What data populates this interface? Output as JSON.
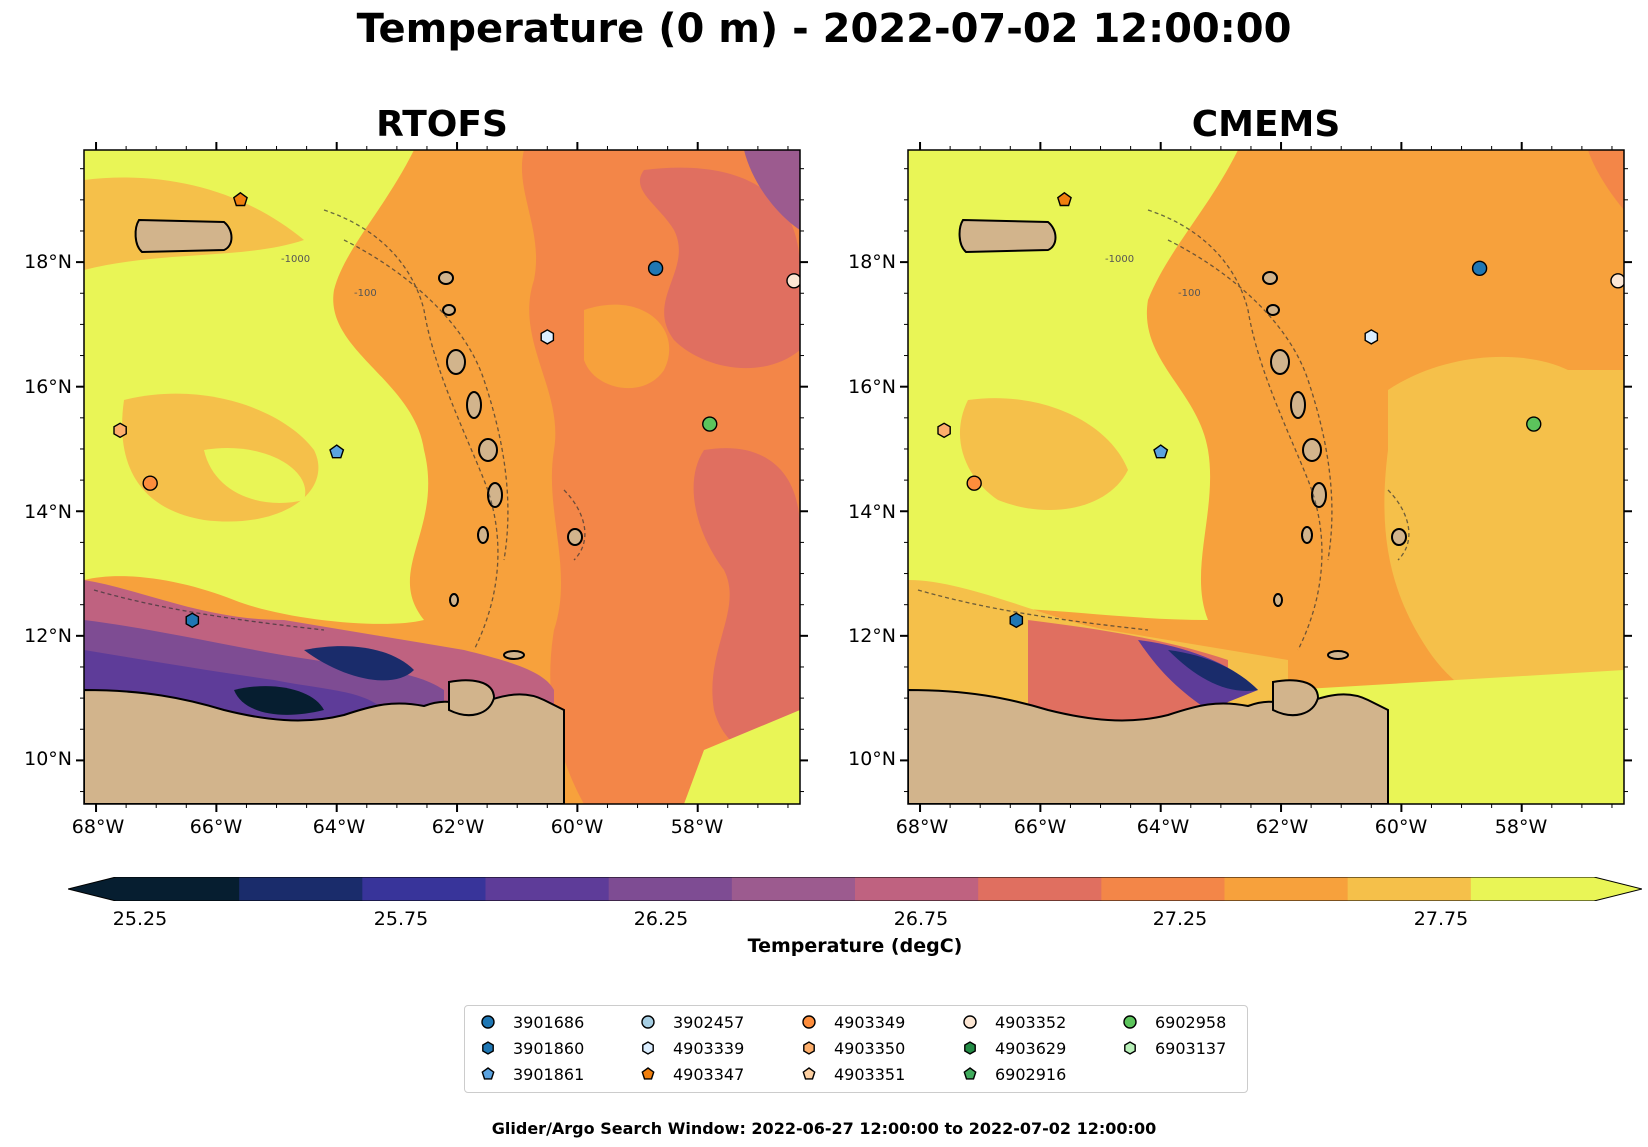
{
  "title": "Temperature (0 m) - 2022-07-02 12:00:00",
  "panels": [
    {
      "title": "RTOFS"
    },
    {
      "title": "CMEMS"
    }
  ],
  "lat_ticks": [
    "18°N",
    "16°N",
    "14°N",
    "12°N",
    "10°N"
  ],
  "lon_ticks": [
    "68°W",
    "66°W",
    "64°W",
    "62°W",
    "60°W",
    "58°W"
  ],
  "bathymetry_labels": [
    "-1000",
    "-100"
  ],
  "colorbar": {
    "label": "Temperature (degC)",
    "tick_labels": [
      "25.25",
      "25.75",
      "26.25",
      "26.75",
      "27.25",
      "27.75"
    ],
    "colors": [
      "#061e30",
      "#1a2c6b",
      "#38349a",
      "#5e3c99",
      "#7e4c93",
      "#9c5b8f",
      "#bf6280",
      "#e06f60",
      "#f38648",
      "#f7a13c",
      "#f5c04a",
      "#e9f556"
    ],
    "min_color": "#061e30",
    "max_color": "#e9f556"
  },
  "colors": {
    "land": "#d2b48c",
    "water_lakes": "#a6c3df"
  },
  "legend": {
    "items": [
      {
        "id": "3901686",
        "marker": "circle",
        "color": "#1f77b4"
      },
      {
        "id": "3901860",
        "marker": "hexagon",
        "color": "#1f77b4"
      },
      {
        "id": "3901861",
        "marker": "pentagon",
        "color": "#5ba3e0"
      },
      {
        "id": "3902457",
        "marker": "circle",
        "color": "#a6cee3"
      },
      {
        "id": "4903339",
        "marker": "hexagon",
        "color": "#dbeeff"
      },
      {
        "id": "4903347",
        "marker": "pentagon",
        "color": "#f07f0e"
      },
      {
        "id": "4903349",
        "marker": "circle",
        "color": "#fd8d3c"
      },
      {
        "id": "4903350",
        "marker": "hexagon",
        "color": "#fdae6b"
      },
      {
        "id": "4903351",
        "marker": "pentagon",
        "color": "#fdd0a2"
      },
      {
        "id": "4903352",
        "marker": "circle",
        "color": "#fde7d4"
      },
      {
        "id": "4903629",
        "marker": "hexagon",
        "color": "#238b45"
      },
      {
        "id": "6902916",
        "marker": "pentagon",
        "color": "#41ab5d"
      },
      {
        "id": "6902958",
        "marker": "circle",
        "color": "#5cc45c"
      },
      {
        "id": "6903137",
        "marker": "hexagon",
        "color": "#b8f0b8"
      }
    ]
  },
  "float_positions": [
    {
      "id": "4903347",
      "lon": -65.6,
      "lat": 19.0
    },
    {
      "id": "3901686",
      "lon": -58.7,
      "lat": 17.9
    },
    {
      "id": "4903352",
      "lon": -56.4,
      "lat": 17.7
    },
    {
      "id": "4903339",
      "lon": -60.5,
      "lat": 16.8
    },
    {
      "id": "4903350",
      "lon": -67.6,
      "lat": 15.3
    },
    {
      "id": "6902958",
      "lon": -57.8,
      "lat": 15.4
    },
    {
      "id": "3901861",
      "lon": -64.0,
      "lat": 14.95
    },
    {
      "id": "4903349",
      "lon": -67.1,
      "lat": 14.45
    },
    {
      "id": "3901860",
      "lon": -66.4,
      "lat": 12.25
    }
  ],
  "footer": "Glider/Argo Search Window: 2022-06-27 12:00:00 to 2022-07-02 12:00:00"
}
